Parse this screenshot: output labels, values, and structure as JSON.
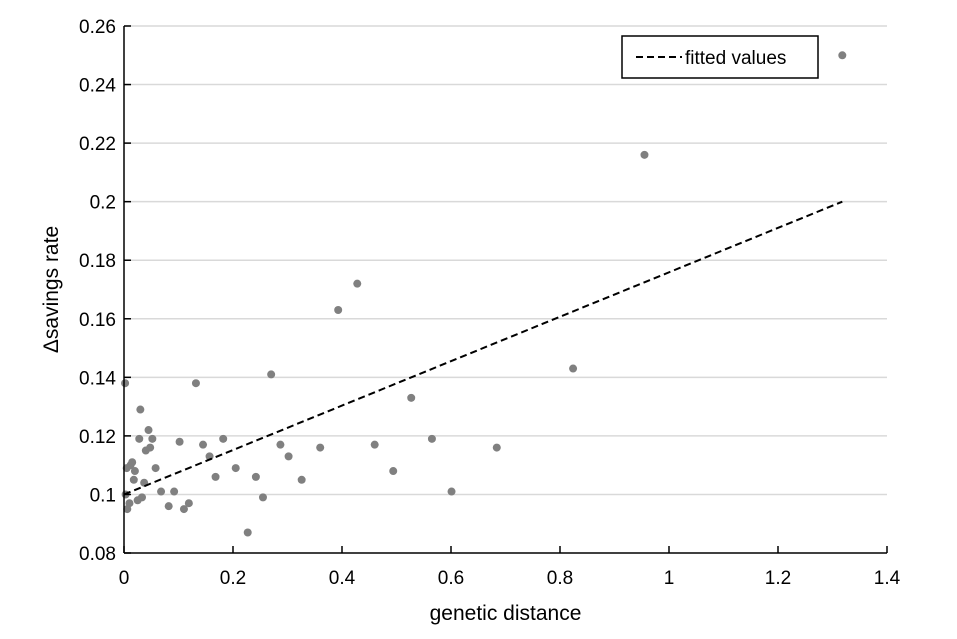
{
  "chart_data": {
    "type": "scatter",
    "xlabel": "genetic distance",
    "ylabel": "Δsavings rate",
    "xlim": [
      0,
      1.4
    ],
    "ylim": [
      0.08,
      0.26
    ],
    "xticks": [
      0,
      0.2,
      0.4,
      0.6,
      0.8,
      1,
      1.2,
      1.4
    ],
    "xtick_labels": [
      "0",
      "0.2",
      "0.4",
      "0.6",
      "0.8",
      "1",
      "1.2",
      "1.4"
    ],
    "yticks": [
      0.08,
      0.1,
      0.12,
      0.14,
      0.16,
      0.18,
      0.2,
      0.22,
      0.24,
      0.26
    ],
    "ytick_labels": [
      "0.08",
      "0.1",
      "0.12",
      "0.14",
      "0.16",
      "0.18",
      "0.2",
      "0.22",
      "0.24",
      "0.26"
    ],
    "grid": "horizontal",
    "legend": {
      "position": "top-right",
      "entries": [
        "fitted values"
      ]
    },
    "point_color": "#808080",
    "line_color": "#000000",
    "points": [
      [
        0.002,
        0.138
      ],
      [
        0.003,
        0.1
      ],
      [
        0.005,
        0.109
      ],
      [
        0.006,
        0.095
      ],
      [
        0.01,
        0.097
      ],
      [
        0.012,
        0.11
      ],
      [
        0.015,
        0.111
      ],
      [
        0.018,
        0.105
      ],
      [
        0.02,
        0.108
      ],
      [
        0.025,
        0.098
      ],
      [
        0.028,
        0.119
      ],
      [
        0.03,
        0.129
      ],
      [
        0.033,
        0.099
      ],
      [
        0.037,
        0.104
      ],
      [
        0.04,
        0.115
      ],
      [
        0.045,
        0.122
      ],
      [
        0.048,
        0.116
      ],
      [
        0.052,
        0.119
      ],
      [
        0.058,
        0.109
      ],
      [
        0.068,
        0.101
      ],
      [
        0.082,
        0.096
      ],
      [
        0.092,
        0.101
      ],
      [
        0.102,
        0.118
      ],
      [
        0.11,
        0.095
      ],
      [
        0.119,
        0.097
      ],
      [
        0.132,
        0.138
      ],
      [
        0.145,
        0.117
      ],
      [
        0.157,
        0.113
      ],
      [
        0.168,
        0.106
      ],
      [
        0.182,
        0.119
      ],
      [
        0.205,
        0.109
      ],
      [
        0.227,
        0.087
      ],
      [
        0.242,
        0.106
      ],
      [
        0.255,
        0.099
      ],
      [
        0.27,
        0.141
      ],
      [
        0.287,
        0.117
      ],
      [
        0.302,
        0.113
      ],
      [
        0.326,
        0.105
      ],
      [
        0.36,
        0.116
      ],
      [
        0.393,
        0.163
      ],
      [
        0.428,
        0.172
      ],
      [
        0.46,
        0.117
      ],
      [
        0.494,
        0.108
      ],
      [
        0.527,
        0.133
      ],
      [
        0.565,
        0.119
      ],
      [
        0.601,
        0.101
      ],
      [
        0.684,
        0.116
      ],
      [
        0.824,
        0.143
      ],
      [
        0.955,
        0.216
      ],
      [
        1.318,
        0.25
      ]
    ],
    "fitted_line": {
      "name": "fitted values",
      "x": [
        0,
        1.318
      ],
      "y": [
        0.1,
        0.2
      ]
    }
  }
}
